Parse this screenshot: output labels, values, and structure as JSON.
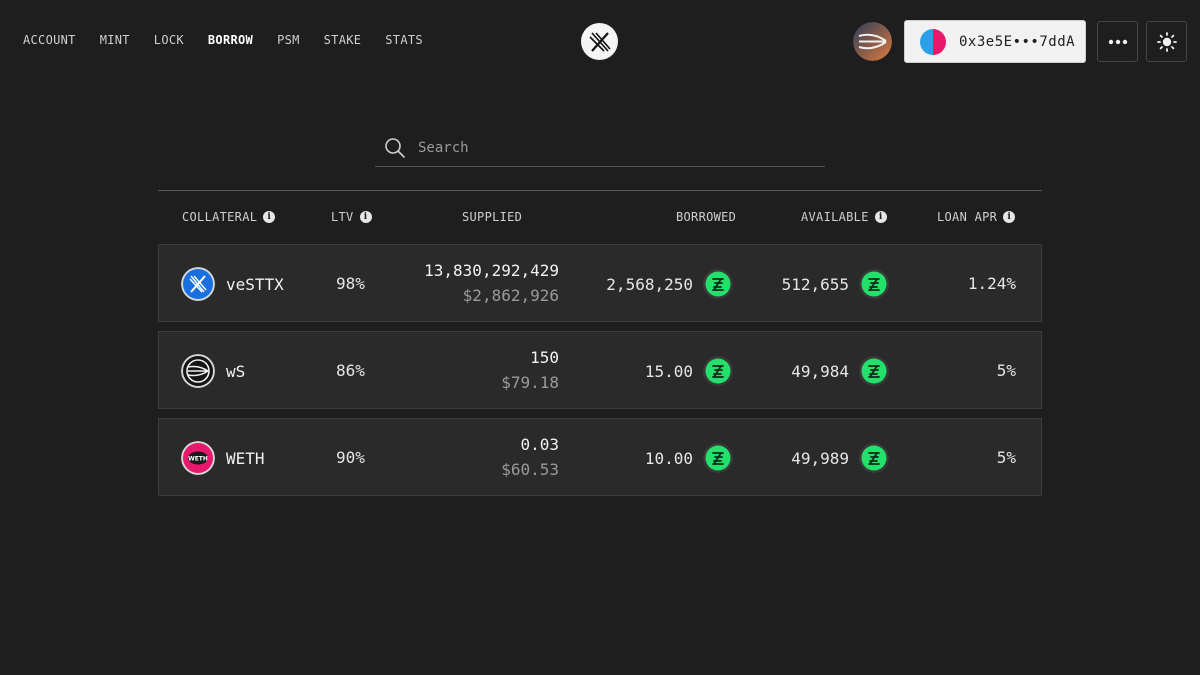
{
  "nav": {
    "items": [
      {
        "label": "ACCOUNT"
      },
      {
        "label": "MINT"
      },
      {
        "label": "LOCK"
      },
      {
        "label": "BORROW"
      },
      {
        "label": "PSM"
      },
      {
        "label": "STAKE"
      },
      {
        "label": "STATS"
      }
    ],
    "active": "BORROW"
  },
  "header": {
    "logo_icon": "sttx-logo-icon",
    "chain_icon": "sonic-chain-icon",
    "wallet_address": "0x3e5E•••7ddA",
    "more_icon": "ellipsis-icon",
    "theme_icon": "sun-icon"
  },
  "search": {
    "placeholder": "Search",
    "value": ""
  },
  "table": {
    "columns": [
      "COLLATERAL",
      "LTV",
      "SUPPLIED",
      "BORROWED",
      "AVAILABLE",
      "LOAN APR"
    ],
    "rows": [
      {
        "token": "veSTTX",
        "icon": "vesttx-icon",
        "ltv": "98%",
        "supplied": "13,830,292,429",
        "supplied_usd": "$2,862,926",
        "borrowed": "2,568,250",
        "available": "512,655",
        "apr": "1.24%"
      },
      {
        "token": "wS",
        "icon": "ws-icon",
        "ltv": "86%",
        "supplied": "150",
        "supplied_usd": "$79.18",
        "borrowed": "15.00",
        "available": "49,984",
        "apr": "5%"
      },
      {
        "token": "WETH",
        "icon": "weth-icon",
        "ltv": "90%",
        "supplied": "0.03",
        "supplied_usd": "$60.53",
        "borrowed": "10.00",
        "available": "49,989",
        "apr": "5%"
      }
    ]
  },
  "colors": {
    "background": "#1e1e1e",
    "row_bg": "#2a2a2a",
    "accent_green": "#22e06a",
    "vesttx_blue": "#1a6fe0",
    "weth_pink": "#e8186d"
  }
}
